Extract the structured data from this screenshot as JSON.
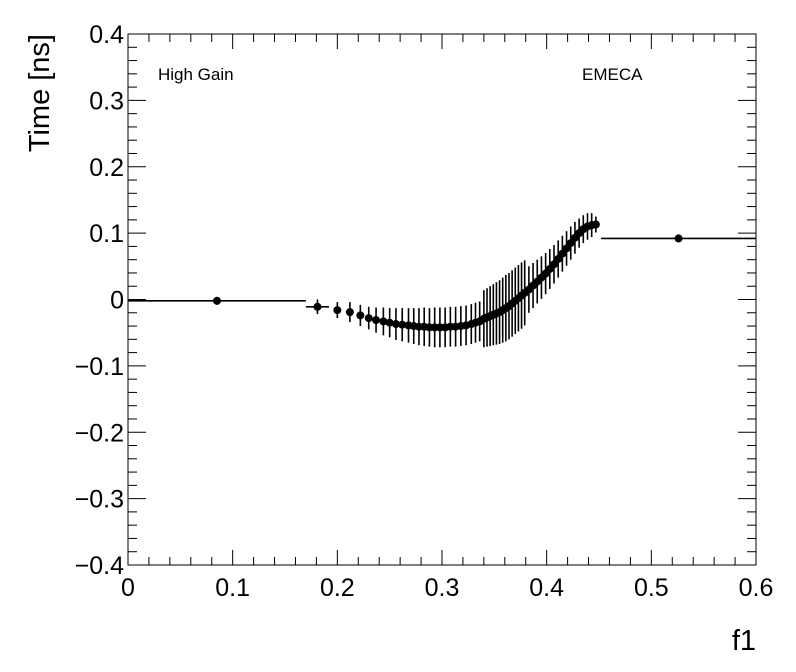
{
  "chart_data": {
    "type": "scatter",
    "xlabel": "f1",
    "ylabel": "Time [ns]",
    "annotations": [
      "High Gain",
      "EMECA"
    ],
    "xlim": [
      0,
      0.6
    ],
    "ylim": [
      -0.4,
      0.4
    ],
    "x_ticks": [
      0,
      0.1,
      0.2,
      0.3,
      0.4,
      0.5,
      0.6
    ],
    "x_tick_labels": [
      "0",
      "0.1",
      "0.2",
      "0.3",
      "0.4",
      "0.5",
      "0.6"
    ],
    "y_ticks": [
      -0.4,
      -0.3,
      -0.2,
      -0.1,
      0,
      0.1,
      0.2,
      0.3,
      0.4
    ],
    "y_tick_labels": [
      "−0.4",
      "−0.3",
      "−0.2",
      "−0.1",
      "0",
      "0.1",
      "0.2",
      "0.3",
      "0.4"
    ],
    "grid": false,
    "series": [
      {
        "points": [
          {
            "x": 0.085,
            "xlo": 0.0,
            "xhi": 0.17,
            "y": -0.002,
            "err": 0.006
          },
          {
            "x": 0.181,
            "xlo": 0.17,
            "xhi": 0.192,
            "y": -0.011,
            "err": 0.011
          },
          {
            "x": 0.2,
            "y": -0.016,
            "err": 0.012
          },
          {
            "x": 0.212,
            "y": -0.019,
            "err": 0.015
          },
          {
            "x": 0.222,
            "y": -0.024,
            "err": 0.016
          },
          {
            "x": 0.23,
            "y": -0.028,
            "err": 0.017
          },
          {
            "x": 0.237,
            "y": -0.031,
            "err": 0.019
          },
          {
            "x": 0.244,
            "y": -0.033,
            "err": 0.021
          },
          {
            "x": 0.25,
            "y": -0.035,
            "err": 0.022
          },
          {
            "x": 0.256,
            "y": -0.037,
            "err": 0.024
          },
          {
            "x": 0.262,
            "y": -0.038,
            "err": 0.025
          },
          {
            "x": 0.268,
            "y": -0.039,
            "err": 0.026
          },
          {
            "x": 0.273,
            "y": -0.04,
            "err": 0.027
          },
          {
            "x": 0.278,
            "y": -0.041,
            "err": 0.028
          },
          {
            "x": 0.283,
            "y": -0.041,
            "err": 0.029
          },
          {
            "x": 0.288,
            "y": -0.042,
            "err": 0.029
          },
          {
            "x": 0.293,
            "y": -0.042,
            "err": 0.03
          },
          {
            "x": 0.298,
            "y": -0.042,
            "err": 0.03
          },
          {
            "x": 0.303,
            "y": -0.042,
            "err": 0.03
          },
          {
            "x": 0.308,
            "y": -0.041,
            "err": 0.03
          },
          {
            "x": 0.313,
            "y": -0.041,
            "err": 0.03
          },
          {
            "x": 0.318,
            "y": -0.04,
            "err": 0.03
          },
          {
            "x": 0.323,
            "y": -0.039,
            "err": 0.03
          },
          {
            "x": 0.328,
            "y": -0.037,
            "err": 0.03
          },
          {
            "x": 0.332,
            "y": -0.035,
            "err": 0.03
          },
          {
            "x": 0.336,
            "y": -0.033,
            "err": 0.03
          },
          {
            "x": 0.34,
            "y": -0.029,
            "err": 0.043
          },
          {
            "x": 0.343,
            "y": -0.027,
            "err": 0.044
          },
          {
            "x": 0.346,
            "y": -0.025,
            "err": 0.045
          },
          {
            "x": 0.349,
            "y": -0.023,
            "err": 0.046
          },
          {
            "x": 0.352,
            "y": -0.021,
            "err": 0.047
          },
          {
            "x": 0.355,
            "y": -0.019,
            "err": 0.048
          },
          {
            "x": 0.358,
            "y": -0.016,
            "err": 0.049
          },
          {
            "x": 0.361,
            "y": -0.013,
            "err": 0.05
          },
          {
            "x": 0.364,
            "y": -0.01,
            "err": 0.05
          },
          {
            "x": 0.367,
            "y": -0.006,
            "err": 0.05
          },
          {
            "x": 0.37,
            "y": -0.002,
            "err": 0.05
          },
          {
            "x": 0.373,
            "y": 0.002,
            "err": 0.05
          },
          {
            "x": 0.376,
            "y": 0.006,
            "err": 0.05
          },
          {
            "x": 0.379,
            "y": 0.01,
            "err": 0.049
          },
          {
            "x": 0.383,
            "y": 0.015,
            "err": 0.035
          },
          {
            "x": 0.387,
            "y": 0.021,
            "err": 0.034
          },
          {
            "x": 0.391,
            "y": 0.027,
            "err": 0.033
          },
          {
            "x": 0.395,
            "y": 0.033,
            "err": 0.032
          },
          {
            "x": 0.399,
            "y": 0.039,
            "err": 0.031
          },
          {
            "x": 0.403,
            "y": 0.046,
            "err": 0.03
          },
          {
            "x": 0.407,
            "y": 0.053,
            "err": 0.029
          },
          {
            "x": 0.411,
            "y": 0.061,
            "err": 0.028
          },
          {
            "x": 0.415,
            "y": 0.069,
            "err": 0.027
          },
          {
            "x": 0.419,
            "y": 0.077,
            "err": 0.026
          },
          {
            "x": 0.423,
            "y": 0.085,
            "err": 0.025
          },
          {
            "x": 0.427,
            "y": 0.093,
            "err": 0.024
          },
          {
            "x": 0.431,
            "y": 0.1,
            "err": 0.022
          },
          {
            "x": 0.435,
            "y": 0.106,
            "err": 0.021
          },
          {
            "x": 0.439,
            "y": 0.11,
            "err": 0.02
          },
          {
            "x": 0.443,
            "y": 0.112,
            "err": 0.018
          },
          {
            "x": 0.447,
            "y": 0.113,
            "err": 0.012
          },
          {
            "x": 0.526,
            "xlo": 0.452,
            "xhi": 0.6,
            "y": 0.092,
            "err": 0.006
          }
        ]
      }
    ]
  }
}
